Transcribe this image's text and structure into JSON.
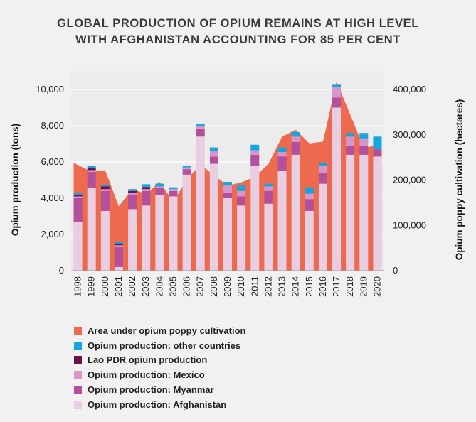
{
  "title_lines": [
    "GLOBAL PRODUCTION OF OPIUM REMAINS AT HIGH LEVEL",
    "WITH AFGHANISTAN ACCOUNTING FOR 85 PER CENT"
  ],
  "chart_data": {
    "type": "bar",
    "stacked": true,
    "ylabel": "Opium production (tons)",
    "y2label": "Opium poppy cultivation (hectares)",
    "ylim": [
      0,
      10000
    ],
    "y2lim": [
      0,
      400000
    ],
    "yticks": [
      "0",
      "2,000",
      "4,000",
      "6,000",
      "8,000",
      "10,000"
    ],
    "y2ticks": [
      "0",
      "100,000",
      "200,000",
      "300,000",
      "400,000"
    ],
    "grid": true,
    "legend_position": "bottom",
    "categories": [
      "1998",
      "1999",
      "2000",
      "2001",
      "2002",
      "2003",
      "2004",
      "2005",
      "2006",
      "2007",
      "2008",
      "2009",
      "2010",
      "2011",
      "2012",
      "2013",
      "2014",
      "2015",
      "2016",
      "2017",
      "2018",
      "2019",
      "2020"
    ],
    "series": [
      {
        "name": "Opium production: Afghanistan",
        "color": "#e9cde0",
        "values": [
          2700,
          4550,
          3300,
          200,
          3400,
          3600,
          4200,
          4100,
          5300,
          7400,
          5900,
          4000,
          3600,
          5800,
          3700,
          5500,
          6400,
          3300,
          4800,
          9000,
          6400,
          6400,
          6300
        ]
      },
      {
        "name": "Opium production: Myanmar",
        "color": "#b2509c",
        "values": [
          1300,
          900,
          1100,
          1100,
          800,
          800,
          350,
          300,
          300,
          450,
          400,
          300,
          500,
          600,
          700,
          800,
          700,
          650,
          600,
          550,
          500,
          500,
          400
        ]
      },
      {
        "name": "Opium production: Mexico",
        "color": "#d697c8",
        "values": [
          100,
          100,
          100,
          100,
          100,
          100,
          100,
          100,
          100,
          150,
          325,
          400,
          300,
          250,
          250,
          250,
          300,
          300,
          400,
          600,
          500,
          400,
          0
        ]
      },
      {
        "name": "Lao PDR opium production",
        "color": "#6a1351",
        "values": [
          100,
          100,
          150,
          100,
          100,
          120,
          0,
          0,
          0,
          0,
          0,
          0,
          0,
          0,
          0,
          0,
          0,
          0,
          0,
          0,
          0,
          0,
          0
        ]
      },
      {
        "name": "Opium production: other countries",
        "color": "#14a6dc",
        "values": [
          100,
          120,
          100,
          100,
          100,
          150,
          150,
          100,
          100,
          100,
          175,
          200,
          300,
          300,
          150,
          250,
          250,
          350,
          150,
          150,
          200,
          300,
          700
        ]
      }
    ],
    "area_series": {
      "name": "Area under opium poppy cultivation",
      "color": "#ed6a4f",
      "axis": "y2",
      "values": [
        238000,
        218000,
        222000,
        142000,
        181000,
        169000,
        196000,
        152000,
        201000,
        235000,
        210000,
        188000,
        195000,
        207000,
        236000,
        296000,
        311000,
        281000,
        285000,
        418000,
        345000,
        271000,
        279000
      ]
    },
    "legend_order": [
      "Area under opium poppy cultivation",
      "Opium production: other countries",
      "Lao PDR opium production",
      "Opium production: Mexico",
      "Opium production: Myanmar",
      "Opium production: Afghanistan"
    ]
  }
}
